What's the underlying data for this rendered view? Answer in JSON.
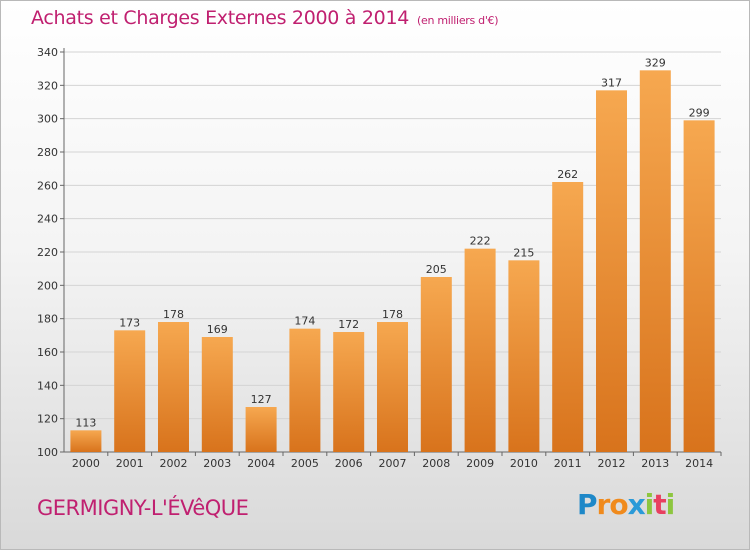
{
  "header": {
    "title": "Achats et Charges Externes 2000 à 2014",
    "unit": "(en milliers d'€)"
  },
  "footer": {
    "place": "GERMIGNY-L'ÉVêQUE",
    "logo": {
      "letters": [
        "P",
        "r",
        "o",
        "x",
        "i",
        "t",
        "i"
      ],
      "colors": [
        "#1e88c8",
        "#f08a1c",
        "#f08a1c",
        "#2a9ad8",
        "#8dc63f",
        "#e84060",
        "#8dc63f"
      ]
    }
  },
  "colors": {
    "bar_light": "#f6a850",
    "bar_dark": "#d8731c",
    "text": "#c02070",
    "grid": "#d4d4d4"
  },
  "chart_data": {
    "type": "bar",
    "categories": [
      "2000",
      "2001",
      "2002",
      "2003",
      "2004",
      "2005",
      "2006",
      "2007",
      "2008",
      "2009",
      "2010",
      "2011",
      "2012",
      "2013",
      "2014"
    ],
    "values": [
      113,
      173,
      178,
      169,
      127,
      174,
      172,
      178,
      205,
      222,
      215,
      262,
      317,
      329,
      299
    ],
    "ylim": [
      100,
      340
    ],
    "yticks": [
      100,
      120,
      140,
      160,
      180,
      200,
      220,
      240,
      260,
      280,
      300,
      320,
      340
    ],
    "grid": true,
    "data_labels": true
  }
}
